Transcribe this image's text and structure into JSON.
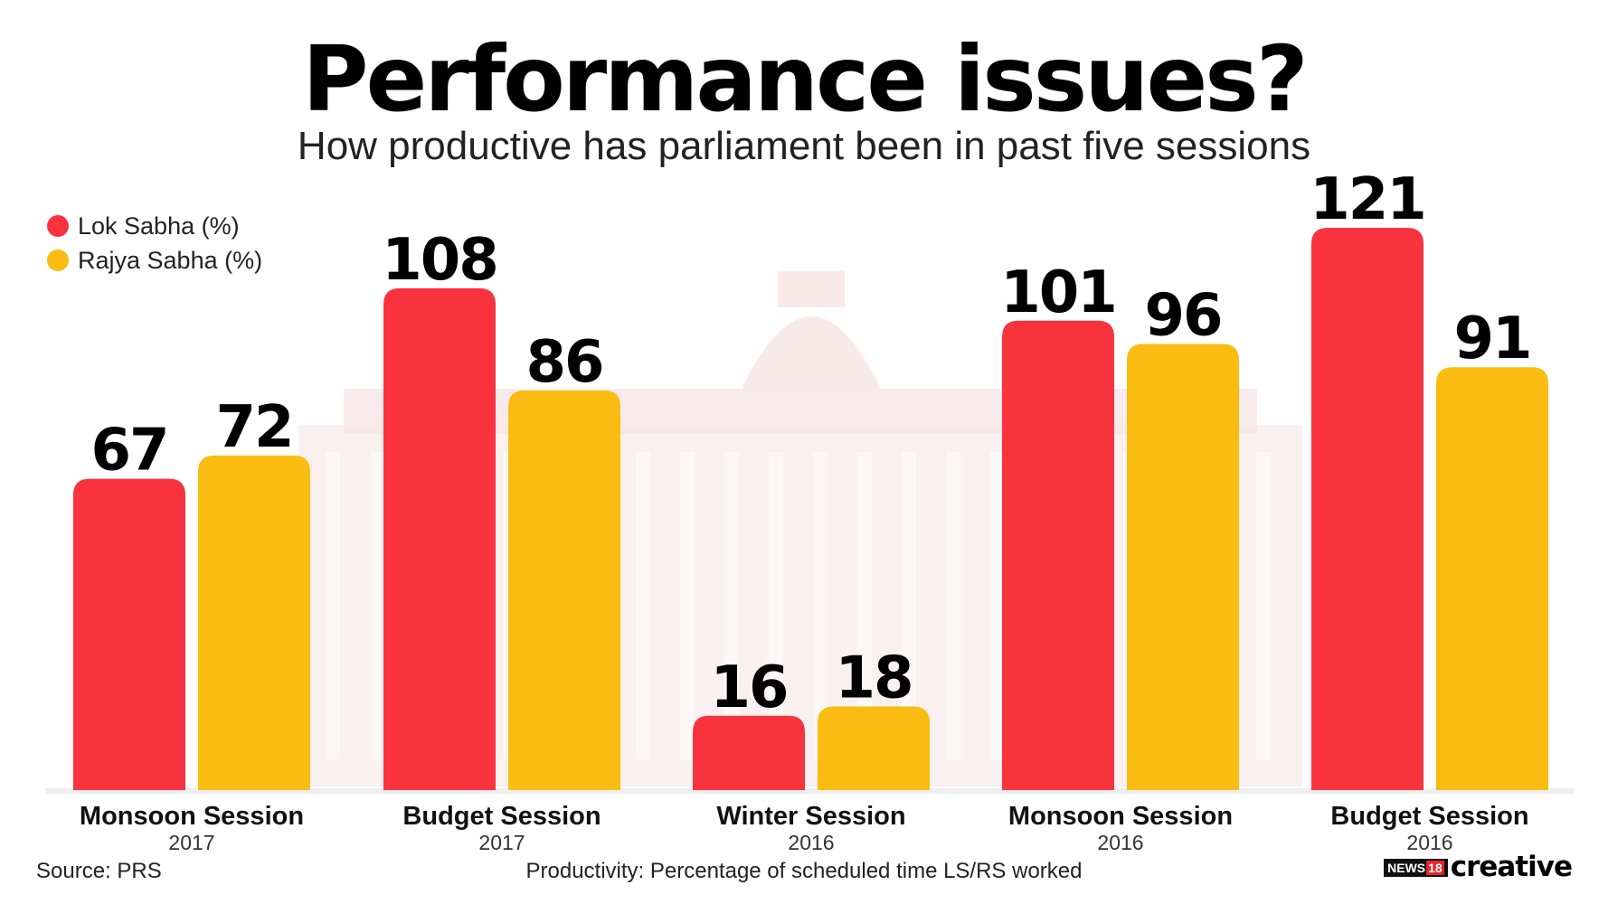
{
  "title": "Performance issues?",
  "subtitle": "How productive has parliament been in past five sessions",
  "legend": [
    {
      "label": "Lok Sabha (%)",
      "color": "#f8333d"
    },
    {
      "label": "Rajya Sabha (%)",
      "color": "#fbbc12"
    }
  ],
  "footer": {
    "source": "Source: PRS",
    "note": "Productivity: Percentage of scheduled time LS/RS worked",
    "brand_badge": "NEWS",
    "brand_badge_num": "18",
    "brand_word": "creative"
  },
  "chart_data": {
    "type": "bar",
    "categories": [
      {
        "name": "Monsoon Session",
        "year": "2017"
      },
      {
        "name": "Budget Session",
        "year": "2017"
      },
      {
        "name": "Winter Session",
        "year": "2016"
      },
      {
        "name": "Monsoon Session",
        "year": "2016"
      },
      {
        "name": "Budget Session",
        "year": "2016"
      }
    ],
    "series": [
      {
        "name": "Lok Sabha (%)",
        "color": "#f8333d",
        "values": [
          67,
          108,
          16,
          101,
          121
        ]
      },
      {
        "name": "Rajya Sabha (%)",
        "color": "#fbbc12",
        "values": [
          72,
          86,
          18,
          96,
          91
        ]
      }
    ],
    "ylim": [
      0,
      121
    ],
    "grid": false,
    "legend_position": "top-left",
    "xlabel": "",
    "ylabel": ""
  }
}
